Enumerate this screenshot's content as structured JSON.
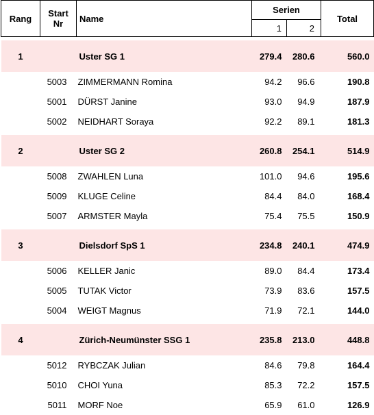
{
  "header": {
    "rang": "Rang",
    "start_nr_line1": "Start",
    "start_nr_line2": "Nr",
    "name": "Name",
    "serien": "Serien",
    "serie1": "1",
    "serie2": "2",
    "total": "Total"
  },
  "teams": [
    {
      "rang": "1",
      "name": "Uster SG 1",
      "s1": "279.4",
      "s2": "280.6",
      "total": "560.0",
      "members": [
        {
          "start": "5003",
          "name": "ZIMMERMANN Romina",
          "s1": "94.2",
          "s2": "96.6",
          "total": "190.8"
        },
        {
          "start": "5001",
          "name": "DÜRST Janine",
          "s1": "93.0",
          "s2": "94.9",
          "total": "187.9"
        },
        {
          "start": "5002",
          "name": "NEIDHART Soraya",
          "s1": "92.2",
          "s2": "89.1",
          "total": "181.3"
        }
      ]
    },
    {
      "rang": "2",
      "name": "Uster SG 2",
      "s1": "260.8",
      "s2": "254.1",
      "total": "514.9",
      "members": [
        {
          "start": "5008",
          "name": "ZWAHLEN Luna",
          "s1": "101.0",
          "s2": "94.6",
          "total": "195.6"
        },
        {
          "start": "5009",
          "name": "KLUGE Celine",
          "s1": "84.4",
          "s2": "84.0",
          "total": "168.4"
        },
        {
          "start": "5007",
          "name": "ARMSTER Mayla",
          "s1": "75.4",
          "s2": "75.5",
          "total": "150.9"
        }
      ]
    },
    {
      "rang": "3",
      "name": "Dielsdorf SpS 1",
      "s1": "234.8",
      "s2": "240.1",
      "total": "474.9",
      "members": [
        {
          "start": "5006",
          "name": "KELLER Janic",
          "s1": "89.0",
          "s2": "84.4",
          "total": "173.4"
        },
        {
          "start": "5005",
          "name": "TUTAK Victor",
          "s1": "73.9",
          "s2": "83.6",
          "total": "157.5"
        },
        {
          "start": "5004",
          "name": "WEIGT Magnus",
          "s1": "71.9",
          "s2": "72.1",
          "total": "144.0"
        }
      ]
    },
    {
      "rang": "4",
      "name": "Zürich-Neumünster SSG 1",
      "s1": "235.8",
      "s2": "213.0",
      "total": "448.8",
      "members": [
        {
          "start": "5012",
          "name": "RYBCZAK Julian",
          "s1": "84.6",
          "s2": "79.8",
          "total": "164.4"
        },
        {
          "start": "5010",
          "name": "CHOI Yuna",
          "s1": "85.3",
          "s2": "72.2",
          "total": "157.5"
        },
        {
          "start": "5011",
          "name": "MORF Noe",
          "s1": "65.9",
          "s2": "61.0",
          "total": "126.9"
        }
      ]
    }
  ],
  "colors": {
    "team_row_bg": "#fde5e5",
    "border": "#000000"
  }
}
